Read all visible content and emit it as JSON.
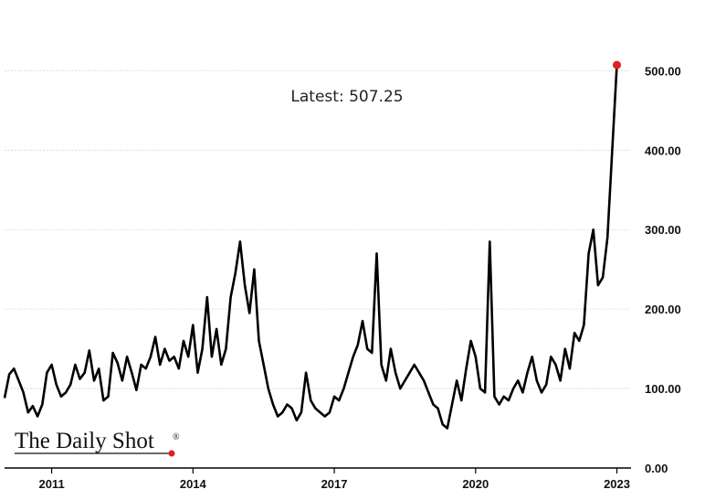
{
  "logo": {
    "text": "The Daily Shot",
    "mark": "®"
  },
  "chart_data": {
    "type": "line",
    "title": "",
    "xlabel": "",
    "ylabel": "",
    "annotation": "Latest:  507.25",
    "latest_value": 507.25,
    "ylim": [
      0,
      520
    ],
    "xlim": [
      2010.0,
      2023.3
    ],
    "y_ticks": [
      {
        "value": 0,
        "label": "0.00"
      },
      {
        "value": 100,
        "label": "100.00"
      },
      {
        "value": 200,
        "label": "200.00"
      },
      {
        "value": 300,
        "label": "300.00"
      },
      {
        "value": 400,
        "label": "400.00"
      },
      {
        "value": 500,
        "label": "500.00"
      }
    ],
    "x_ticks": [
      {
        "value": 2011.0,
        "label": "2011"
      },
      {
        "value": 2014.0,
        "label": "2014"
      },
      {
        "value": 2017.0,
        "label": "2017"
      },
      {
        "value": 2020.0,
        "label": "2020"
      },
      {
        "value": 2023.0,
        "label": "2023"
      }
    ],
    "grid": "horizontal dotted",
    "colors": {
      "line": "#000000",
      "latest_marker": "#e02020"
    },
    "series": [
      {
        "x": [
          2010.0,
          2010.1,
          2010.2,
          2010.3,
          2010.4,
          2010.5,
          2010.6,
          2010.7,
          2010.8,
          2010.9,
          2011.0,
          2011.1,
          2011.2,
          2011.3,
          2011.4,
          2011.5,
          2011.6,
          2011.7,
          2011.8,
          2011.9,
          2012.0,
          2012.1,
          2012.2,
          2012.3,
          2012.4,
          2012.5,
          2012.6,
          2012.7,
          2012.8,
          2012.9,
          2013.0,
          2013.1,
          2013.2,
          2013.3,
          2013.4,
          2013.5,
          2013.6,
          2013.7,
          2013.8,
          2013.9,
          2014.0,
          2014.1,
          2014.2,
          2014.3,
          2014.4,
          2014.5,
          2014.6,
          2014.7,
          2014.8,
          2014.9,
          2015.0,
          2015.1,
          2015.2,
          2015.3,
          2015.4,
          2015.5,
          2015.6,
          2015.7,
          2015.8,
          2015.9,
          2016.0,
          2016.1,
          2016.2,
          2016.3,
          2016.4,
          2016.5,
          2016.6,
          2016.7,
          2016.8,
          2016.9,
          2017.0,
          2017.1,
          2017.2,
          2017.3,
          2017.4,
          2017.5,
          2017.6,
          2017.7,
          2017.8,
          2017.9,
          2018.0,
          2018.1,
          2018.2,
          2018.3,
          2018.4,
          2018.5,
          2018.6,
          2018.7,
          2018.8,
          2018.9,
          2019.0,
          2019.1,
          2019.2,
          2019.3,
          2019.4,
          2019.5,
          2019.6,
          2019.7,
          2019.8,
          2019.9,
          2020.0,
          2020.1,
          2020.2,
          2020.3,
          2020.4,
          2020.5,
          2020.6,
          2020.7,
          2020.8,
          2020.9,
          2021.0,
          2021.1,
          2021.2,
          2021.3,
          2021.4,
          2021.5,
          2021.6,
          2021.7,
          2021.8,
          2021.9,
          2022.0,
          2022.1,
          2022.2,
          2022.3,
          2022.4,
          2022.5,
          2022.6,
          2022.7,
          2022.8,
          2022.9,
          2023.0
        ],
        "values": [
          88,
          118,
          125,
          110,
          95,
          70,
          78,
          65,
          80,
          120,
          130,
          105,
          90,
          95,
          105,
          130,
          112,
          120,
          148,
          110,
          125,
          85,
          90,
          145,
          132,
          110,
          140,
          120,
          98,
          130,
          125,
          140,
          165,
          130,
          150,
          135,
          140,
          125,
          160,
          140,
          180,
          120,
          150,
          215,
          140,
          175,
          130,
          150,
          215,
          245,
          285,
          230,
          195,
          250,
          160,
          130,
          100,
          80,
          65,
          70,
          80,
          75,
          60,
          70,
          120,
          85,
          75,
          70,
          65,
          70,
          90,
          85,
          100,
          120,
          140,
          155,
          185,
          150,
          145,
          270,
          130,
          110,
          150,
          120,
          100,
          110,
          120,
          130,
          120,
          110,
          95,
          80,
          75,
          55,
          50,
          80,
          110,
          85,
          125,
          160,
          140,
          100,
          95,
          285,
          90,
          80,
          90,
          85,
          100,
          110,
          95,
          120,
          140,
          110,
          95,
          105,
          140,
          130,
          110,
          150,
          125,
          170,
          160,
          180,
          270,
          300,
          230,
          240,
          290,
          400,
          507.25
        ]
      }
    ]
  }
}
